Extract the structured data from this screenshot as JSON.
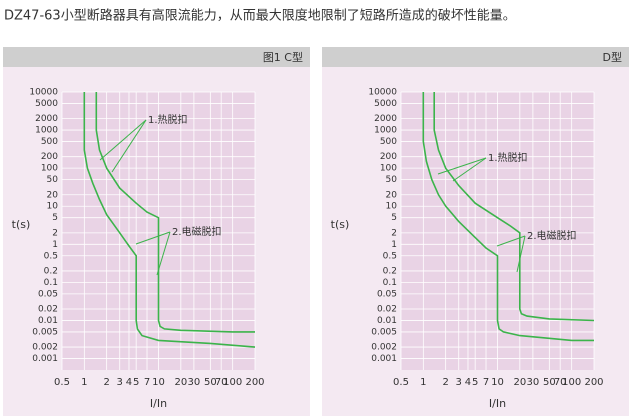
{
  "heading": "DZ47-63小型断路器具有高限流能力，从而最大限度地限制了短路所造成的破坏性能量。",
  "chart_data": [
    {
      "type": "line",
      "title": "图1 C型",
      "xlabel": "I/In",
      "ylabel": "t(s)",
      "xlog": true,
      "ylog": true,
      "grid": true,
      "xlim": [
        0.5,
        200
      ],
      "ylim": [
        0.0005,
        10000
      ],
      "xticks": [
        0.5,
        1,
        2,
        3,
        4,
        5,
        7,
        10,
        20,
        30,
        50,
        70,
        100,
        200
      ],
      "yticks": [
        0.001,
        0.002,
        0.005,
        0.01,
        0.02,
        0.05,
        0.1,
        0.2,
        0.5,
        1,
        2,
        5,
        10,
        20,
        50,
        100,
        200,
        500,
        1000,
        2000,
        5000,
        10000
      ],
      "annotations": [
        "1.热脱扣",
        "2.电磁脱扣"
      ],
      "series": [
        {
          "color": "#3cb44b",
          "x": [
            1,
            1,
            1.1,
            1.3,
            1.6,
            2,
            3,
            4,
            5,
            5,
            5.2,
            6,
            10,
            50,
            200
          ],
          "values": [
            10000,
            300,
            100,
            40,
            15,
            6,
            2,
            0.9,
            0.5,
            0.01,
            0.006,
            0.004,
            0.003,
            0.0025,
            0.002
          ]
        },
        {
          "color": "#3cb44b",
          "x": [
            1.45,
            1.45,
            1.6,
            2,
            3,
            5,
            7,
            10,
            10,
            10.5,
            12,
            20,
            100,
            200
          ],
          "values": [
            10000,
            1000,
            300,
            100,
            30,
            12,
            7,
            5,
            0.01,
            0.007,
            0.006,
            0.0055,
            0.005,
            0.005
          ]
        }
      ]
    },
    {
      "type": "line",
      "title": "D型",
      "xlabel": "I/In",
      "ylabel": "t(s)",
      "xlog": true,
      "ylog": true,
      "grid": true,
      "xlim": [
        0.5,
        200
      ],
      "ylim": [
        0.0005,
        10000
      ],
      "xticks": [
        0.5,
        1,
        2,
        3,
        4,
        5,
        7,
        10,
        20,
        30,
        50,
        70,
        100,
        200
      ],
      "yticks": [
        0.001,
        0.002,
        0.005,
        0.01,
        0.02,
        0.05,
        0.1,
        0.2,
        0.5,
        1,
        2,
        5,
        10,
        20,
        50,
        100,
        200,
        500,
        1000,
        2000,
        5000,
        10000
      ],
      "annotations": [
        "1.热脱扣",
        "2.电磁脱扣"
      ],
      "series": [
        {
          "color": "#3cb44b",
          "x": [
            1,
            1,
            1.1,
            1.3,
            1.6,
            2,
            3,
            5,
            7,
            10,
            10,
            10.5,
            12,
            20,
            100,
            200
          ],
          "values": [
            10000,
            500,
            150,
            50,
            20,
            10,
            4,
            1.5,
            0.8,
            0.5,
            0.01,
            0.006,
            0.005,
            0.004,
            0.003,
            0.003
          ]
        },
        {
          "color": "#3cb44b",
          "x": [
            1.4,
            1.4,
            1.6,
            2,
            3,
            5,
            10,
            15,
            20,
            20,
            21,
            25,
            50,
            200
          ],
          "values": [
            10000,
            1000,
            300,
            100,
            35,
            12,
            5,
            3,
            2,
            0.02,
            0.015,
            0.013,
            0.011,
            0.01
          ]
        }
      ]
    }
  ]
}
